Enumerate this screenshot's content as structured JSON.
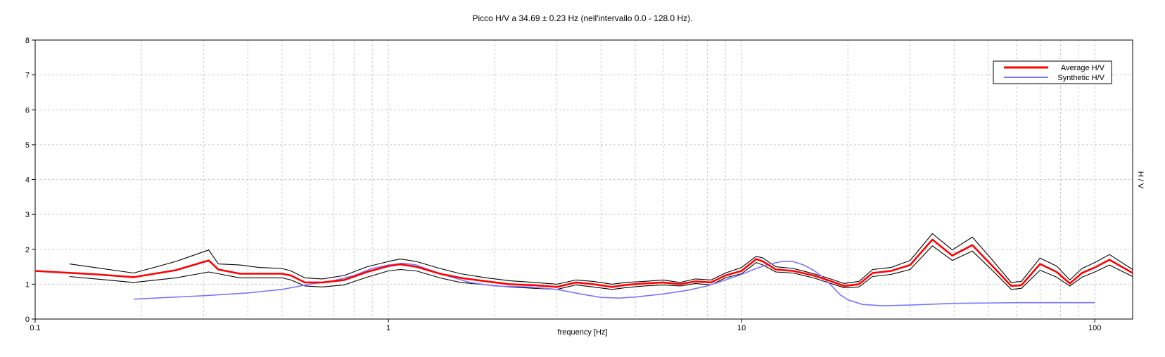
{
  "chart_data": {
    "type": "line",
    "title": "Picco H/V a 34.69 ± 0.23 Hz (nell'intervallo 0.0 - 128.0 Hz).",
    "xlabel": "frequency [Hz]",
    "ylabel": "H / V",
    "x_scale": "log",
    "xlim": [
      0.1,
      128
    ],
    "ylim": [
      0,
      8
    ],
    "x_ticks": [
      {
        "value": 0.1,
        "label": "0.1"
      },
      {
        "value": 1,
        "label": "1"
      },
      {
        "value": 10,
        "label": "10"
      },
      {
        "value": 100,
        "label": "100"
      }
    ],
    "y_ticks": [
      {
        "value": 0,
        "label": "0"
      },
      {
        "value": 1,
        "label": "1"
      },
      {
        "value": 2,
        "label": "2"
      },
      {
        "value": 3,
        "label": "3"
      },
      {
        "value": 4,
        "label": "4"
      },
      {
        "value": 5,
        "label": "5"
      },
      {
        "value": 6,
        "label": "6"
      },
      {
        "value": 7,
        "label": "7"
      },
      {
        "value": 8,
        "label": "8"
      }
    ],
    "grid": true,
    "legend": {
      "position": "top-right",
      "entries": [
        "Average H/V",
        "Synthetic H/V"
      ]
    },
    "series": [
      {
        "name": "Average H/V",
        "color": "#ff0000",
        "x": [
          0.1,
          0.15,
          0.19,
          0.25,
          0.31,
          0.33,
          0.38,
          0.43,
          0.5,
          0.53,
          0.58,
          0.65,
          0.75,
          0.87,
          1.0,
          1.08,
          1.2,
          1.4,
          1.6,
          1.9,
          2.2,
          2.6,
          3.0,
          3.4,
          3.8,
          4.3,
          4.7,
          5.3,
          6.0,
          6.7,
          7.4,
          8.2,
          9.0,
          10.0,
          11.0,
          11.5,
          12.5,
          14.0,
          16.0,
          17.5,
          19.5,
          21.5,
          23.5,
          26.5,
          30.0,
          34.7,
          39.5,
          45.0,
          51.0,
          58.0,
          62.0,
          70.0,
          78.0,
          85.0,
          92.0,
          100.0,
          110.0,
          128.0
        ],
        "values": [
          1.38,
          1.28,
          1.2,
          1.4,
          1.68,
          1.42,
          1.3,
          1.3,
          1.3,
          1.25,
          1.05,
          1.05,
          1.12,
          1.35,
          1.52,
          1.57,
          1.5,
          1.3,
          1.18,
          1.08,
          1.0,
          0.97,
          0.92,
          1.05,
          1.0,
          0.92,
          0.98,
          1.02,
          1.05,
          1.0,
          1.08,
          1.05,
          1.25,
          1.38,
          1.72,
          1.65,
          1.42,
          1.38,
          1.25,
          1.12,
          0.95,
          1.0,
          1.32,
          1.38,
          1.55,
          2.28,
          1.82,
          2.12,
          1.55,
          0.95,
          0.97,
          1.58,
          1.35,
          1.02,
          1.32,
          1.48,
          1.7,
          1.32
        ]
      },
      {
        "name": "",
        "color": "#000000",
        "x": [
          0.125,
          0.19,
          0.25,
          0.31,
          0.33,
          0.38,
          0.43,
          0.5,
          0.53,
          0.58,
          0.65,
          0.75,
          0.87,
          1.0,
          1.08,
          1.2,
          1.4,
          1.6,
          1.9,
          2.2,
          2.6,
          3.0,
          3.4,
          3.8,
          4.3,
          4.7,
          5.3,
          6.0,
          6.7,
          7.4,
          8.2,
          9.0,
          10.0,
          11.0,
          11.5,
          12.5,
          14.0,
          16.0,
          17.5,
          19.5,
          21.5,
          23.5,
          26.5,
          30.0,
          34.7,
          39.5,
          45.0,
          51.0,
          58.0,
          62.0,
          70.0,
          78.0,
          85.0,
          92.0,
          100.0,
          110.0,
          128.0
        ],
        "values": [
          1.58,
          1.32,
          1.65,
          1.98,
          1.58,
          1.55,
          1.48,
          1.45,
          1.38,
          1.18,
          1.15,
          1.25,
          1.5,
          1.65,
          1.72,
          1.65,
          1.45,
          1.3,
          1.18,
          1.1,
          1.05,
          1.0,
          1.12,
          1.08,
          1.0,
          1.05,
          1.08,
          1.12,
          1.05,
          1.15,
          1.12,
          1.32,
          1.48,
          1.8,
          1.75,
          1.5,
          1.45,
          1.3,
          1.18,
          1.02,
          1.08,
          1.42,
          1.48,
          1.68,
          2.45,
          1.98,
          2.35,
          1.72,
          1.05,
          1.08,
          1.75,
          1.52,
          1.12,
          1.45,
          1.62,
          1.85,
          1.42
        ]
      },
      {
        "name": "",
        "color": "#000000",
        "x": [
          0.125,
          0.19,
          0.25,
          0.31,
          0.33,
          0.38,
          0.43,
          0.5,
          0.53,
          0.58,
          0.65,
          0.75,
          0.87,
          1.0,
          1.08,
          1.2,
          1.4,
          1.6,
          1.9,
          2.2,
          2.6,
          3.0,
          3.4,
          3.8,
          4.3,
          4.7,
          5.3,
          6.0,
          6.7,
          7.4,
          8.2,
          9.0,
          10.0,
          11.0,
          11.5,
          12.5,
          14.0,
          16.0,
          17.5,
          19.5,
          21.5,
          23.5,
          26.5,
          30.0,
          34.7,
          39.5,
          45.0,
          51.0,
          58.0,
          62.0,
          70.0,
          78.0,
          85.0,
          92.0,
          100.0,
          110.0,
          128.0
        ],
        "values": [
          1.22,
          1.05,
          1.18,
          1.35,
          1.3,
          1.18,
          1.18,
          1.18,
          1.12,
          0.95,
          0.92,
          0.98,
          1.2,
          1.38,
          1.42,
          1.38,
          1.18,
          1.05,
          0.98,
          0.92,
          0.88,
          0.85,
          0.98,
          0.92,
          0.85,
          0.9,
          0.95,
          0.98,
          0.95,
          1.02,
          0.98,
          1.18,
          1.3,
          1.62,
          1.55,
          1.35,
          1.32,
          1.18,
          1.05,
          0.9,
          0.92,
          1.22,
          1.28,
          1.42,
          2.1,
          1.68,
          1.95,
          1.42,
          0.85,
          0.88,
          1.4,
          1.2,
          0.95,
          1.2,
          1.35,
          1.55,
          1.22
        ]
      },
      {
        "name": "Synthetic H/V",
        "color": "#7777ff",
        "x": [
          0.19,
          0.25,
          0.3,
          0.4,
          0.5,
          0.6,
          0.7,
          0.8,
          0.9,
          1.0,
          1.1,
          1.2,
          1.4,
          1.7,
          2.0,
          2.5,
          3.0,
          3.5,
          4.0,
          4.5,
          5.0,
          6.0,
          7.0,
          8.0,
          9.0,
          10.0,
          11.0,
          12.0,
          13.0,
          14.0,
          15.0,
          16.0,
          17.0,
          18.0,
          19.0,
          20.0,
          22.0,
          25.0,
          30.0,
          40.0,
          60.0,
          80.0,
          100.0
        ],
        "values": [
          0.57,
          0.63,
          0.67,
          0.75,
          0.85,
          1.0,
          1.1,
          1.25,
          1.45,
          1.55,
          1.6,
          1.55,
          1.3,
          1.05,
          0.95,
          0.92,
          0.85,
          0.72,
          0.62,
          0.6,
          0.63,
          0.72,
          0.82,
          0.95,
          1.12,
          1.28,
          1.45,
          1.58,
          1.65,
          1.65,
          1.55,
          1.4,
          1.2,
          0.95,
          0.7,
          0.55,
          0.42,
          0.38,
          0.4,
          0.45,
          0.47,
          0.47,
          0.47
        ]
      }
    ]
  }
}
